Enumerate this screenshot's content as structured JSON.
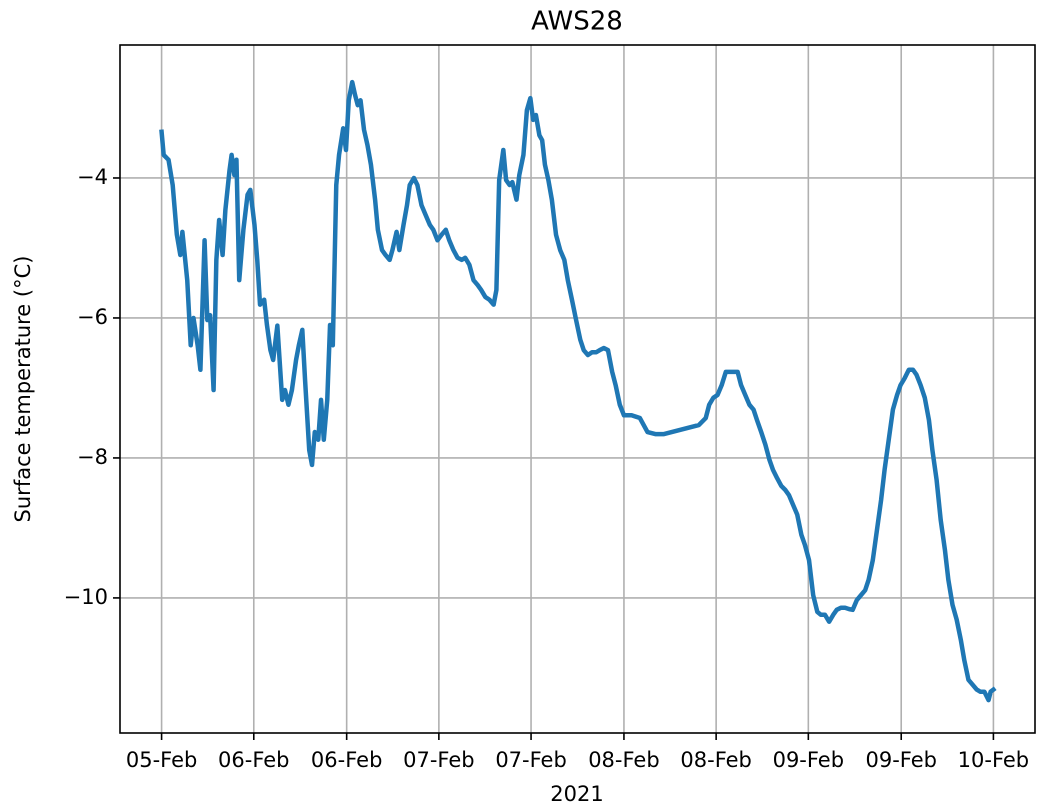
{
  "chart_data": {
    "type": "line",
    "title": "AWS28",
    "xlabel": "2021",
    "ylabel": "Surface temperature (°C)",
    "color": "#1f77b4",
    "grid": true,
    "xlim": [
      -6,
      126
    ],
    "ylim": [
      -11.93,
      -2.1
    ],
    "xticks": [
      {
        "value": 0,
        "label": "05-Feb"
      },
      {
        "value": 13.3,
        "label": "06-Feb"
      },
      {
        "value": 26.7,
        "label": "06-Feb"
      },
      {
        "value": 40,
        "label": "07-Feb"
      },
      {
        "value": 53.3,
        "label": "07-Feb"
      },
      {
        "value": 66.7,
        "label": "08-Feb"
      },
      {
        "value": 80,
        "label": "08-Feb"
      },
      {
        "value": 93.3,
        "label": "09-Feb"
      },
      {
        "value": 106.7,
        "label": "09-Feb"
      },
      {
        "value": 120,
        "label": "10-Feb"
      }
    ],
    "yticks": [
      {
        "value": -4,
        "label": "−4"
      },
      {
        "value": -6,
        "label": "−6"
      },
      {
        "value": -8,
        "label": "−8"
      },
      {
        "value": -10,
        "label": "−10"
      }
    ],
    "x": [
      0,
      0.3,
      1.0,
      1.6,
      2.2,
      2.7,
      3.0,
      3.7,
      4.2,
      4.6,
      5.2,
      5.6,
      6.2,
      6.6,
      7.0,
      7.5,
      7.9,
      8.3,
      8.8,
      9.2,
      9.8,
      10.1,
      10.5,
      10.8,
      11.2,
      11.8,
      12.4,
      12.8,
      13.4,
      13.8,
      14.2,
      14.8,
      15.2,
      15.7,
      16.1,
      16.7,
      17.4,
      17.8,
      18.3,
      18.8,
      19.4,
      19.8,
      20.3,
      20.7,
      21.3,
      21.7,
      22.1,
      22.6,
      23.0,
      23.4,
      23.9,
      24.3,
      24.7,
      25.2,
      25.6,
      26.2,
      26.6,
      27.0,
      27.5,
      27.9,
      28.3,
      28.7,
      29.2,
      29.7,
      30.2,
      30.8,
      31.2,
      31.8,
      32.3,
      32.9,
      33.3,
      33.9,
      34.3,
      34.9,
      35.4,
      35.8,
      36.4,
      36.9,
      37.5,
      38.1,
      38.7,
      39.2,
      39.8,
      40.4,
      41.0,
      41.5,
      42.1,
      42.7,
      43.3,
      43.8,
      44.4,
      45.0,
      45.6,
      46.1,
      46.7,
      47.3,
      47.9,
      48.3,
      48.7,
      49.3,
      49.7,
      50.2,
      50.6,
      51.2,
      51.6,
      52.2,
      52.7,
      53.2,
      53.6,
      54.0,
      54.5,
      54.9,
      55.3,
      55.8,
      56.3,
      56.9,
      57.5,
      58.1,
      58.6,
      59.2,
      59.8,
      60.4,
      60.9,
      61.5,
      62.1,
      62.7,
      63.2,
      63.8,
      64.4,
      65.0,
      65.5,
      66.1,
      66.7,
      67.8,
      69.0,
      70.1,
      71.3,
      72.4,
      77.5,
      78.5,
      79.0,
      79.6,
      80.2,
      80.8,
      81.4,
      81.9,
      82.5,
      83.1,
      83.6,
      84.2,
      84.8,
      85.4,
      85.9,
      86.5,
      87.1,
      87.7,
      88.2,
      88.8,
      89.4,
      90.0,
      90.5,
      91.1,
      91.7,
      92.3,
      92.8,
      93.4,
      94.0,
      94.6,
      95.1,
      95.7,
      96.3,
      96.9,
      97.4,
      98.0,
      98.6,
      99.2,
      99.7,
      100.3,
      100.9,
      101.5,
      102.0,
      102.6,
      103.2,
      103.8,
      104.3,
      104.9,
      105.5,
      106.1,
      106.6,
      107.2,
      107.8,
      108.4,
      108.9,
      109.5,
      110.1,
      110.7,
      111.2,
      111.8,
      112.4,
      113.0,
      113.5,
      114.1,
      114.7,
      115.3,
      115.8,
      116.4,
      117.0,
      117.6,
      118.1,
      118.7,
      119.3,
      119.6,
      120.0
    ],
    "values": [
      -3.34,
      -3.67,
      -3.74,
      -4.1,
      -4.81,
      -5.1,
      -4.77,
      -5.46,
      -6.39,
      -6.0,
      -6.39,
      -6.74,
      -4.89,
      -6.03,
      -5.96,
      -7.03,
      -5.17,
      -4.6,
      -5.1,
      -4.46,
      -3.89,
      -3.67,
      -3.96,
      -3.74,
      -5.46,
      -4.74,
      -4.24,
      -4.17,
      -4.67,
      -5.17,
      -5.81,
      -5.74,
      -6.1,
      -6.46,
      -6.6,
      -6.11,
      -7.17,
      -7.03,
      -7.24,
      -7.03,
      -6.6,
      -6.39,
      -6.17,
      -6.89,
      -7.89,
      -8.1,
      -7.63,
      -7.74,
      -7.17,
      -7.74,
      -7.17,
      -6.1,
      -6.39,
      -4.1,
      -3.67,
      -3.29,
      -3.6,
      -2.89,
      -2.63,
      -2.81,
      -2.96,
      -2.89,
      -3.31,
      -3.53,
      -3.81,
      -4.31,
      -4.74,
      -5.03,
      -5.1,
      -5.17,
      -5.03,
      -4.77,
      -5.03,
      -4.67,
      -4.39,
      -4.1,
      -4.0,
      -4.1,
      -4.39,
      -4.53,
      -4.67,
      -4.74,
      -4.89,
      -4.81,
      -4.74,
      -4.89,
      -5.03,
      -5.14,
      -5.17,
      -5.14,
      -5.24,
      -5.46,
      -5.53,
      -5.6,
      -5.7,
      -5.74,
      -5.81,
      -5.6,
      -4.03,
      -3.6,
      -4.03,
      -4.1,
      -4.06,
      -4.31,
      -3.96,
      -3.67,
      -3.03,
      -2.86,
      -3.17,
      -3.1,
      -3.39,
      -3.46,
      -3.81,
      -4.03,
      -4.31,
      -4.81,
      -5.03,
      -5.17,
      -5.46,
      -5.74,
      -6.03,
      -6.31,
      -6.46,
      -6.53,
      -6.49,
      -6.49,
      -6.46,
      -6.43,
      -6.46,
      -6.77,
      -6.96,
      -7.24,
      -7.39,
      -7.39,
      -7.43,
      -7.63,
      -7.66,
      -7.66,
      -7.53,
      -7.43,
      -7.24,
      -7.14,
      -7.1,
      -6.96,
      -6.77,
      -6.77,
      -6.77,
      -6.77,
      -6.96,
      -7.1,
      -7.24,
      -7.31,
      -7.46,
      -7.63,
      -7.81,
      -8.03,
      -8.17,
      -8.29,
      -8.4,
      -8.46,
      -8.53,
      -8.67,
      -8.81,
      -9.1,
      -9.24,
      -9.46,
      -9.96,
      -10.2,
      -10.24,
      -10.24,
      -10.34,
      -10.24,
      -10.17,
      -10.14,
      -10.14,
      -10.16,
      -10.17,
      -10.03,
      -9.96,
      -9.89,
      -9.74,
      -9.46,
      -9.03,
      -8.6,
      -8.17,
      -7.74,
      -7.31,
      -7.1,
      -6.96,
      -6.86,
      -6.74,
      -6.74,
      -6.81,
      -6.96,
      -7.14,
      -7.46,
      -7.89,
      -8.31,
      -8.89,
      -9.31,
      -9.74,
      -10.1,
      -10.31,
      -10.6,
      -10.89,
      -11.17,
      -11.24,
      -11.31,
      -11.34,
      -11.34,
      -11.46,
      -11.34,
      -11.31
    ]
  }
}
